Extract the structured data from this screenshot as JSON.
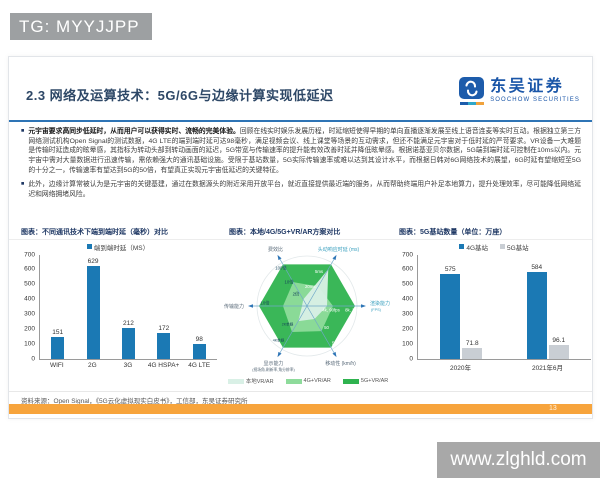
{
  "watermarks": {
    "top": "TG: MYYJJPP",
    "bottom": "www.zlghld.com"
  },
  "header": {
    "title": "2.3 网络及运算技术：5G/6G与边缘计算实现低延迟",
    "logo": {
      "brand": "东吴证券",
      "sub": "SOOCHOW SECURITIES",
      "accent": "#1a56a8"
    }
  },
  "bullets": [
    {
      "lead": "元宇宙要求高同步低延时，从而用户可以获得实时、流畅的完美体验。",
      "rest": "回顾在线实时娱乐发展历程，时延缩短使得早期的单向直播逐渐发展至线上语音连麦等实时互动。根据独立第三方网络测试机构Open Signal的测试数据，4G LTE的端到端时延可达98毫秒，满足视频会议、线上课堂等场景的互动需求，但还不能满足元宇宙对于低时延的严苛要求。VR设备一大难题是传输时延造成的眩晕感，其指标为转动头部到转动画面的延迟，5G带宽与传输速率的提升能有效改善时延并降低眩晕感。根据诺基亚贝尔数据，5G端到端时延可控制在10ms以内。元宇宙中需对大量数据进行迅速传输，需依赖强大的通讯基础设施。受限于基站数量，5G实际传输速率或难以达到其设计水平，而根据日韩对6G网络技术的展望，6G时延有望缩短至5G的十分之一，传输速率有望达到5G的50倍，有望真正实现元宇宙低延迟的关键特征。"
    },
    {
      "lead": "",
      "rest": "此外，边缘计算常被认为是元宇宙的关键基建，通过在数据源头的附近采用开放平台，就近直接提供最近端的服务，从而帮助终端用户补足本地算力，提升处理效率，尽可能降低网络延迟和网络拥堵风险。"
    }
  ],
  "chart_data": [
    {
      "type": "bar",
      "title": "图表：不同通讯技术下端到端时延（毫秒）对比",
      "legend": [
        {
          "name": "端到端时延（MS）",
          "color": "#1b79b4"
        }
      ],
      "categories": [
        "WIFI",
        "2G",
        "3G",
        "4G HSPA+",
        "4G LTE"
      ],
      "values": [
        151,
        629,
        212,
        172,
        98
      ],
      "ylim": [
        0,
        700
      ],
      "yticks": [
        0,
        100,
        200,
        300,
        400,
        500,
        600,
        700
      ],
      "xlabel": "",
      "ylabel": ""
    },
    {
      "type": "radar",
      "title": "图表：本地/4G/5G+VR/AR方案对比",
      "axes": [
        {
          "label": "渲染能力",
          "sublabel": "(FPS)",
          "angle": 0,
          "color": "#3aa0bf",
          "ticks": [
            {
              "text": "4k, 90fps",
              "r": 0.42,
              "color": "#ffffff"
            },
            {
              "text": "8k, 120fps",
              "r": 0.9,
              "color": "#ffffff"
            }
          ]
        },
        {
          "label": "头动响应时延 (ms)",
          "sublabel": "",
          "angle": 60,
          "color": "#3aa0bf",
          "ticks": [
            {
              "text": "20ms",
              "r": 0.45,
              "color": "#ffffff"
            },
            {
              "text": "5ms",
              "r": 0.8,
              "color": "#ffffff"
            }
          ]
        },
        {
          "label": "费效比",
          "sublabel": "",
          "angle": 120,
          "color": "#5a6b7a",
          "ticks": [
            {
              "text": "2倍",
              "r": 0.28,
              "color": "#15445a"
            },
            {
              "text": "10倍",
              "r": 0.56,
              "color": "#15445a"
            },
            {
              "text": "100倍",
              "r": 0.88,
              "color": "#15445a"
            }
          ]
        },
        {
          "label": "传输能力",
          "sublabel": "",
          "angle": 180,
          "color": "#5a6b7a",
          "ticks": [
            {
              "text": "10倍",
              "r": 0.84,
              "color": "#15445a"
            }
          ]
        },
        {
          "label": "显示能力",
          "sublabel": "(视场角,刷新率,角分辨率)",
          "angle": 240,
          "color": "#5a6b7a",
          "ticks": [
            {
              "text": "2K单眼",
              "r": 0.42,
              "color": "#15445a"
            },
            {
              "text": "4K单眼",
              "r": 0.78,
              "color": "#15445a"
            }
          ]
        },
        {
          "label": "移动性 (km/h)",
          "sublabel": "",
          "angle": 300,
          "color": "#5a6b7a",
          "ticks": [
            {
              "text": "50",
              "r": 0.5,
              "color": "#ffffff"
            },
            {
              "text": "500",
              "r": 0.86,
              "color": "#ffffff"
            }
          ]
        }
      ],
      "series": [
        {
          "name": "本地VR/AR",
          "color": "#d9f0e6",
          "values": [
            0.4,
            0.85,
            0.15,
            0.1,
            0.35,
            0.3
          ]
        },
        {
          "name": "4G+VR/AR",
          "color": "#8edb9b",
          "values": [
            0.52,
            0.45,
            0.55,
            0.48,
            0.6,
            0.58
          ]
        },
        {
          "name": "5G+VR/AR",
          "color": "#2fb34f",
          "values": [
            0.96,
            0.96,
            0.96,
            0.96,
            0.96,
            0.96
          ]
        }
      ],
      "legend_position": "bottom"
    },
    {
      "type": "grouped-bar",
      "title": "图表：5G基站数量（单位：万座）",
      "categories": [
        "2020年",
        "2021年6月"
      ],
      "series": [
        {
          "name": "4G基站",
          "color": "#1b79b4",
          "values": [
            575,
            584
          ]
        },
        {
          "name": "5G基站",
          "color": "#c9ced4",
          "values": [
            71.8,
            96.1
          ]
        }
      ],
      "ylim": [
        0,
        700
      ],
      "yticks": [
        0,
        100,
        200,
        300,
        400,
        500,
        600,
        700
      ]
    }
  ],
  "footer": {
    "source": "资料来源：Open Signal，《5G云化虚拟现实白皮书》，工信部，东吴证券研究所",
    "page_number": "13",
    "bar_color": "#f7a43c"
  }
}
